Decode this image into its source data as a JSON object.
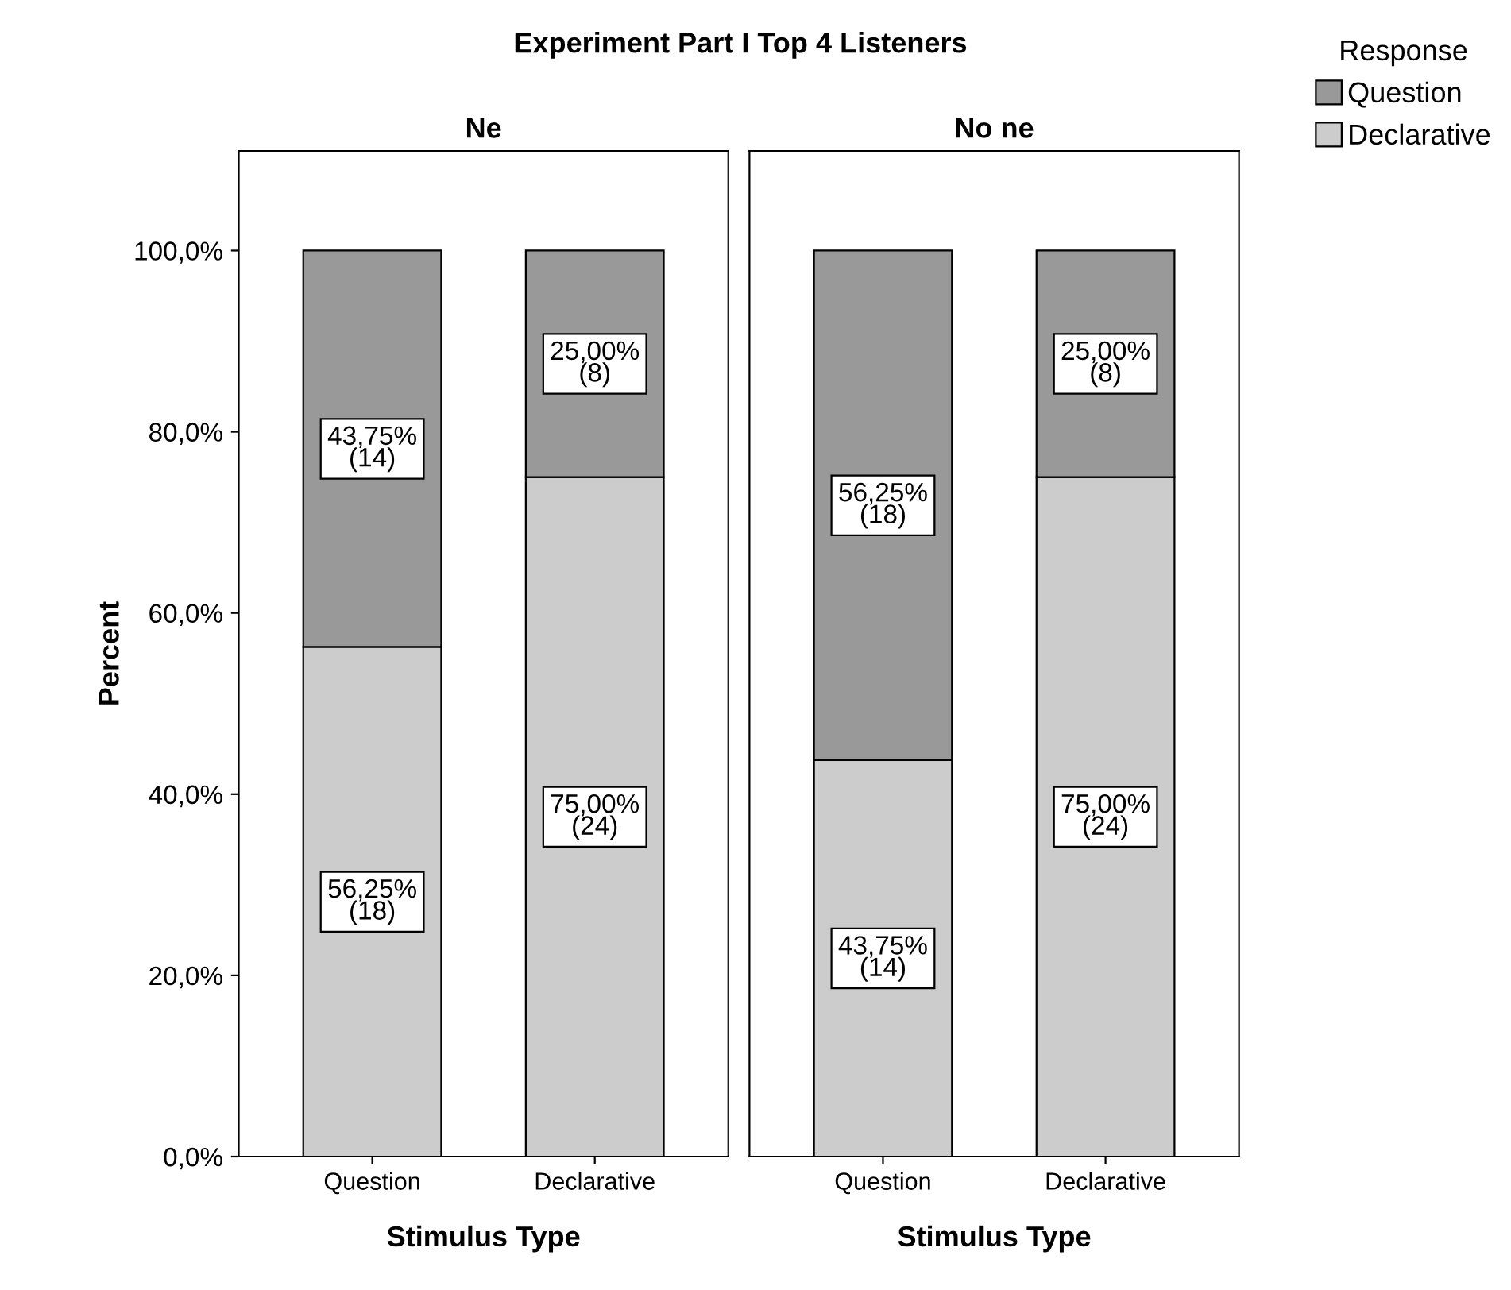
{
  "chart_data": [
    {
      "type": "bar",
      "title": "Ne",
      "annotations": [
        "Experiment Part I Top 4 Listeners"
      ],
      "xlabel": "Stimulus Type",
      "ylabel": "Percent",
      "stacked": true,
      "categories": [
        "Question",
        "Declarative"
      ],
      "legend": "top right",
      "legend_title": "Response",
      "series": [
        {
          "name": "Declarative",
          "color": "#cccccc",
          "values": [
            56.25,
            75.0
          ],
          "value_labels": [
            "56,25%\n(18)",
            "75,00%\n(24)"
          ]
        },
        {
          "name": "Question",
          "color": "#999999",
          "values": [
            43.75,
            25.0
          ],
          "value_labels": [
            "43,75%\n(14)",
            "25,00%\n(8)"
          ]
        }
      ],
      "ylim": [
        0,
        111
      ],
      "yticks": [
        {
          "value": 0,
          "label": "0,0%"
        },
        {
          "value": 20,
          "label": "20,0%"
        },
        {
          "value": 40,
          "label": "40,0%"
        },
        {
          "value": 60,
          "label": "60,0%"
        },
        {
          "value": 80,
          "label": "80,0%"
        },
        {
          "value": 100,
          "label": "100,0%"
        }
      ],
      "grid": false
    },
    {
      "type": "bar",
      "title": "No ne",
      "xlabel": "Stimulus Type",
      "stacked": true,
      "categories": [
        "Question",
        "Declarative"
      ],
      "series": [
        {
          "color": "#cccccc",
          "values": [
            43.75,
            75.0
          ],
          "value_labels": [
            "43,75%\n(14)",
            "75,00%\n(24)"
          ]
        },
        {
          "color": "#999999",
          "values": [
            56.25,
            25.0
          ],
          "value_labels": [
            "56,25%\n(18)",
            "25,00%\n(8)"
          ]
        }
      ],
      "ylim": [
        0,
        111
      ],
      "tick_labels": "x",
      "grid": false
    }
  ]
}
